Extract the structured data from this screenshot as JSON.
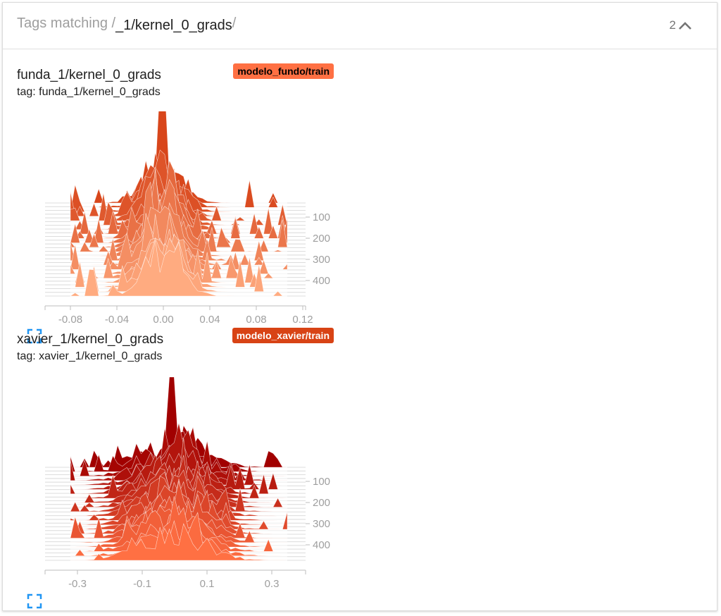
{
  "header": {
    "prefix": "Tags matching /",
    "regex": "_1/kernel_0_grads",
    "suffix": "/",
    "count": "2",
    "toggle_icon": "chevron-up-icon"
  },
  "panes": [
    {
      "title": "funda_1/kernel_0_grads",
      "tag": "tag: funda_1/kernel_0_grads",
      "run": "modelo_fundo/train",
      "run_color": "#ff7043",
      "run_text_color": "#000000",
      "x_ticks": [
        "-0.08",
        "-0.04",
        "0.00",
        "0.04",
        "0.08",
        "0.12"
      ],
      "y_ticks": [
        "100",
        "200",
        "300",
        "400"
      ],
      "color_back": "#d8461b",
      "color_front": "#ffab80"
    },
    {
      "title": "xavier_1/kernel_0_grads",
      "tag": "tag: xavier_1/kernel_0_grads",
      "run": "modelo_xavier/train",
      "run_color": "#d84315",
      "run_text_color": "#ffffff",
      "x_ticks": [
        "-0.3",
        "-0.1",
        "0.1",
        "0.3"
      ],
      "y_ticks": [
        "100",
        "200",
        "300",
        "400"
      ],
      "color_back": "#a10000",
      "color_front": "#ff7043"
    }
  ],
  "expand_icon": "fullscreen-icon"
}
